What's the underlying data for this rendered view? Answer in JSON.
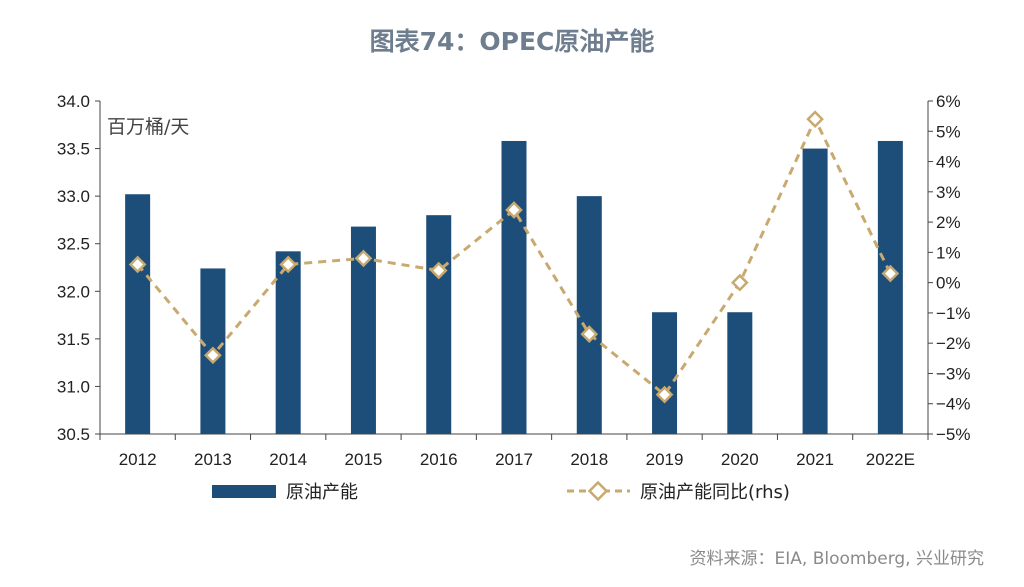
{
  "title": "图表74：OPEC原油产能",
  "source": "资料来源：EIA, Bloomberg, 兴业研究",
  "colors": {
    "bar": "#1d4e79",
    "line": "#c8a96e",
    "axis": "#444444"
  },
  "chart_data": {
    "type": "bar",
    "categories": [
      "2012",
      "2013",
      "2014",
      "2015",
      "2016",
      "2017",
      "2018",
      "2019",
      "2020",
      "2021",
      "2022E"
    ],
    "series": [
      {
        "name": "原油产能",
        "type": "bar",
        "axis": "left",
        "values": [
          33.02,
          32.24,
          32.42,
          32.68,
          32.8,
          33.58,
          33.0,
          31.78,
          31.78,
          33.5,
          33.58
        ]
      },
      {
        "name": "原油产能同比(rhs)",
        "type": "line",
        "axis": "right",
        "values": [
          0.6,
          -2.4,
          0.6,
          0.8,
          0.4,
          2.4,
          -1.7,
          -3.7,
          0.0,
          5.4,
          0.3
        ]
      }
    ],
    "y_left": {
      "label": "百万桶/天",
      "min": 30.5,
      "max": 34.0,
      "step": 0.5,
      "ticks": [
        "30.5",
        "31.0",
        "31.5",
        "32.0",
        "32.5",
        "33.0",
        "33.5",
        "34.0"
      ]
    },
    "y_right": {
      "min": -5,
      "max": 6,
      "step": 1,
      "ticks": [
        "−5%",
        "−4%",
        "−3%",
        "−2%",
        "−1%",
        "0%",
        "1%",
        "2%",
        "3%",
        "4%",
        "5%",
        "6%"
      ]
    },
    "grid": false,
    "legend_position": "bottom"
  }
}
